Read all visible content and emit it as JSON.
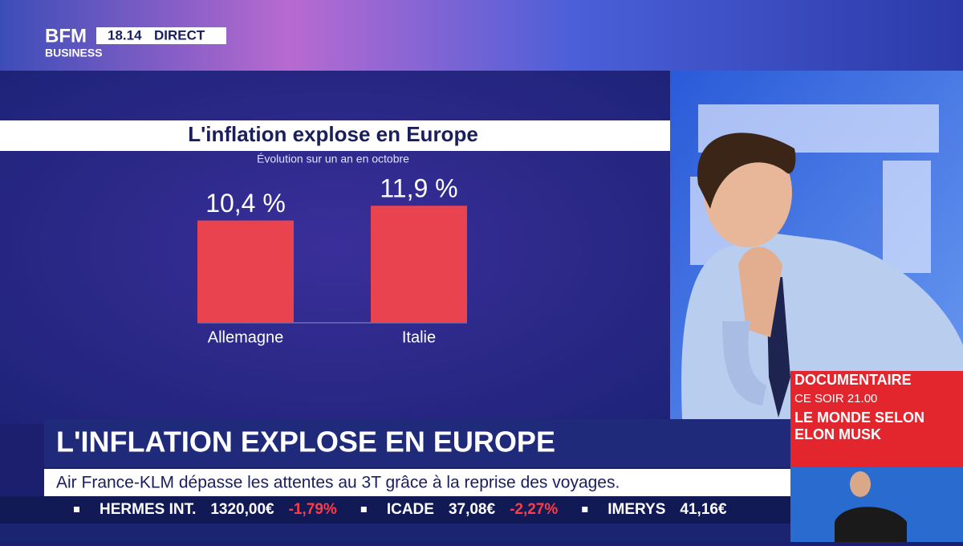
{
  "header": {
    "logo_top": "BFM",
    "logo_bottom": "BUSINESS",
    "time": "18.14",
    "status": "DIRECT"
  },
  "chart_data": {
    "type": "bar",
    "title": "L'inflation explose en Europe",
    "subtitle": "Évolution sur un an en octobre",
    "categories": [
      "Allemagne",
      "Italie"
    ],
    "values": [
      10.4,
      11.9
    ],
    "value_labels": [
      "10,4 %",
      "11,9 %"
    ],
    "color": "#e8434f"
  },
  "headline": "L'INFLATION EXPLOSE EN EUROPE",
  "news_ticker": "Air France-KLM dépasse les attentes au 3T grâce à la reprise des voyages.",
  "stock_ticker": [
    {
      "name": "HERMES INT.",
      "price": "1320,00€",
      "change": "-1,79%"
    },
    {
      "name": "ICADE",
      "price": "37,08€",
      "change": "-2,27%"
    },
    {
      "name": "IMERYS",
      "price": "41,16€"
    }
  ],
  "promo": {
    "label": "DOCUMENTAIRE",
    "time": "CE SOIR 21.00",
    "title_line1": "LE MONDE SELON",
    "title_line2": "ELON MUSK"
  }
}
